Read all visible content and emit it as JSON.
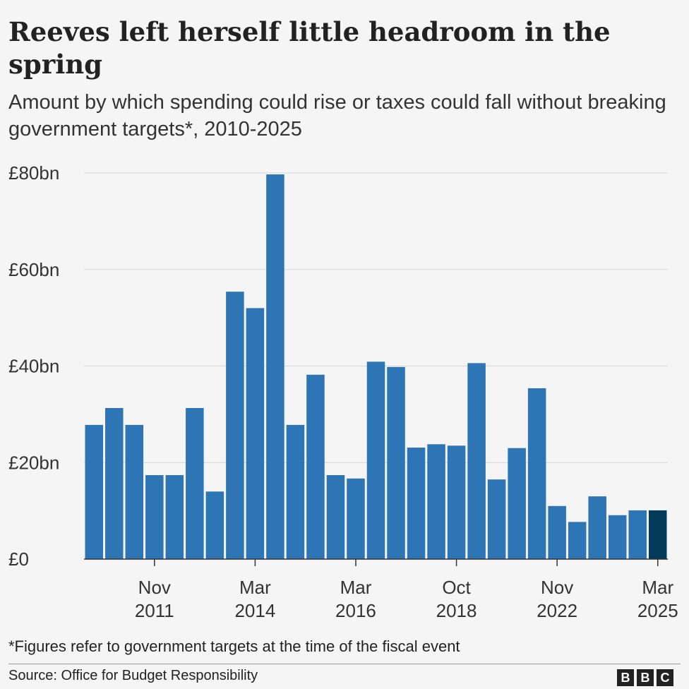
{
  "chart_data": {
    "type": "bar",
    "title": "Reeves left herself little headroom in the spring",
    "subtitle": "Amount by which spending could rise or taxes could fall without breaking government targets*, 2010-2025",
    "xlabel": "",
    "ylabel": "",
    "ylim": [
      0,
      80
    ],
    "yticks": [
      "£0",
      "£20bn",
      "£40bn",
      "£60bn",
      "£80bn"
    ],
    "ytick_values": [
      0,
      20,
      40,
      60,
      80
    ],
    "grid": true,
    "xticks": [
      {
        "index": 3,
        "label": [
          "Nov",
          "2011"
        ]
      },
      {
        "index": 8,
        "label": [
          "Mar",
          "2014"
        ]
      },
      {
        "index": 13,
        "label": [
          "Mar",
          "2016"
        ]
      },
      {
        "index": 18,
        "label": [
          "Oct",
          "2018"
        ]
      },
      {
        "index": 23,
        "label": [
          "Nov",
          "2022"
        ]
      },
      {
        "index": 28,
        "label": [
          "Mar",
          "2025"
        ]
      }
    ],
    "values": [
      27.8,
      31.3,
      27.8,
      17.4,
      17.4,
      31.3,
      14.0,
      55.4,
      52.0,
      79.7,
      27.8,
      38.2,
      17.4,
      16.7,
      40.9,
      39.8,
      23.1,
      23.8,
      23.5,
      40.6,
      16.5,
      23.0,
      35.4,
      11.0,
      7.7,
      13.0,
      9.1,
      10.1,
      10.1
    ],
    "colors": {
      "bar": "#2e75b6",
      "highlight": "#003c5a"
    },
    "highlight_index": 28
  },
  "footnote": "*Figures refer to government targets at the time of the fiscal event",
  "source": "Source: Office for Budget Responsibility",
  "logo": [
    "B",
    "B",
    "C"
  ]
}
